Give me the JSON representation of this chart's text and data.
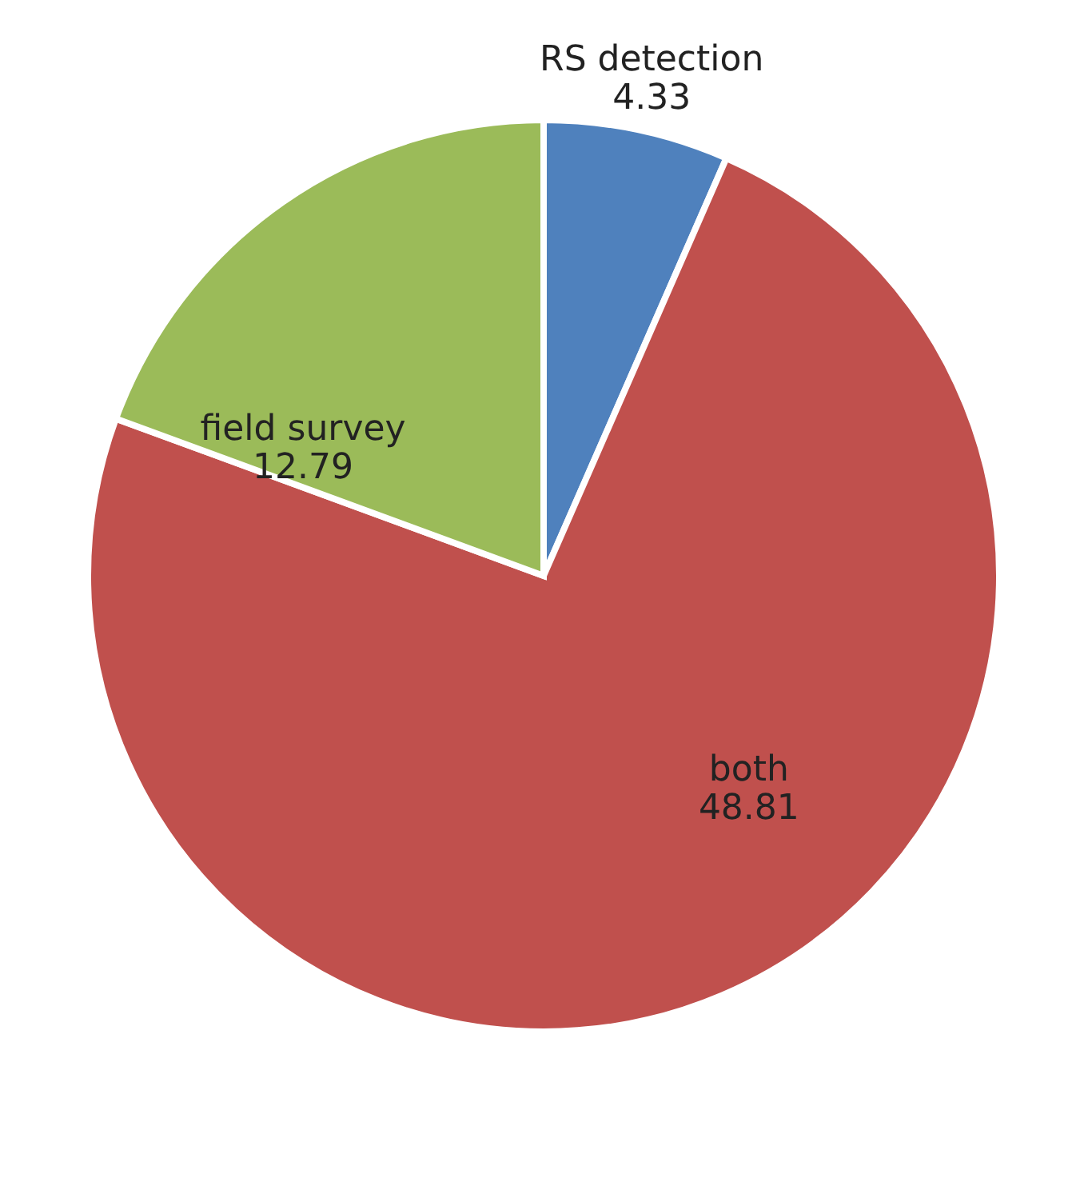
{
  "chart_data": {
    "type": "pie",
    "categories": [
      "RS detection",
      "both",
      "field survey"
    ],
    "values": [
      4.33,
      48.81,
      12.79
    ],
    "colors": [
      "#4f81bd",
      "#c0504d",
      "#9bbb59"
    ],
    "data_labels": true,
    "legend": false
  }
}
